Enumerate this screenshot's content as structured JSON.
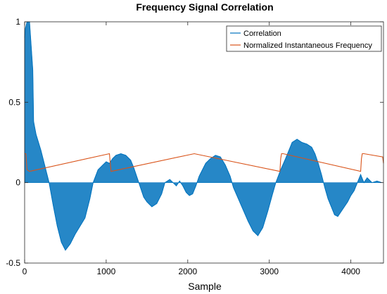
{
  "chart_data": {
    "type": "line",
    "title": "Frequency Signal Correlation",
    "xlabel": "Sample",
    "ylabel": "",
    "xlim": [
      0,
      4400
    ],
    "ylim": [
      -0.5,
      1
    ],
    "xticks": [
      0,
      1000,
      2000,
      3000,
      4000
    ],
    "xtick_labels": [
      "0",
      "1000",
      "2000",
      "3000",
      "4000"
    ],
    "yticks": [
      -0.5,
      0,
      0.5,
      1
    ],
    "ytick_labels": [
      "-0.5",
      "0",
      "0.5",
      "1"
    ],
    "grid": false,
    "legend_position": "top-right",
    "series": [
      {
        "name": "Correlation",
        "color": "#0072BD",
        "style": "filled-to-zero",
        "x": [
          0,
          10,
          30,
          60,
          80,
          100,
          110,
          140,
          200,
          260,
          300,
          350,
          400,
          450,
          500,
          560,
          620,
          680,
          740,
          800,
          840,
          900,
          960,
          1000,
          1040,
          1080,
          1120,
          1180,
          1240,
          1300,
          1340,
          1380,
          1420,
          1460,
          1500,
          1560,
          1620,
          1680,
          1720,
          1780,
          1820,
          1860,
          1900,
          1940,
          1980,
          2020,
          2060,
          2100,
          2140,
          2180,
          2220,
          2280,
          2340,
          2400,
          2460,
          2520,
          2560,
          2620,
          2680,
          2740,
          2800,
          2860,
          2920,
          2980,
          3040,
          3080,
          3140,
          3200,
          3240,
          3280,
          3340,
          3400,
          3460,
          3520,
          3560,
          3600,
          3640,
          3680,
          3720,
          3760,
          3800,
          3840,
          3880,
          3920,
          3960,
          4000,
          4040,
          4080,
          4120,
          4160,
          4200,
          4260,
          4320,
          4380
        ],
        "y": [
          0.9,
          0.96,
          1.0,
          1.0,
          0.85,
          0.7,
          0.38,
          0.3,
          0.2,
          0.08,
          0.0,
          -0.14,
          -0.27,
          -0.37,
          -0.42,
          -0.38,
          -0.32,
          -0.27,
          -0.22,
          -0.1,
          0.0,
          0.08,
          0.11,
          0.13,
          0.12,
          0.15,
          0.17,
          0.18,
          0.17,
          0.14,
          0.09,
          0.03,
          -0.03,
          -0.09,
          -0.12,
          -0.15,
          -0.13,
          -0.07,
          0.0,
          0.02,
          0.0,
          -0.02,
          0.01,
          -0.02,
          -0.06,
          -0.08,
          -0.07,
          -0.02,
          0.04,
          0.08,
          0.12,
          0.15,
          0.17,
          0.16,
          0.11,
          0.04,
          -0.03,
          -0.1,
          -0.17,
          -0.24,
          -0.3,
          -0.33,
          -0.28,
          -0.18,
          -0.07,
          0.0,
          0.08,
          0.15,
          0.2,
          0.25,
          0.27,
          0.25,
          0.24,
          0.22,
          0.18,
          0.12,
          0.05,
          -0.03,
          -0.1,
          -0.15,
          -0.2,
          -0.21,
          -0.18,
          -0.15,
          -0.12,
          -0.08,
          -0.05,
          0.0,
          0.05,
          0.0,
          0.03,
          0.0,
          0.01,
          0.0
        ]
      },
      {
        "name": "Normalized Instantaneous Frequency",
        "color": "#D95319",
        "style": "line",
        "x": [
          0,
          15,
          30,
          60,
          1040,
          1050,
          1060,
          2080,
          3130,
          3140,
          3150,
          3170,
          4120,
          4130,
          4140,
          4160,
          4390,
          4400
        ],
        "y": [
          0.18,
          0.18,
          0.08,
          0.07,
          0.18,
          0.12,
          0.07,
          0.18,
          0.07,
          0.15,
          0.18,
          0.18,
          0.07,
          0.15,
          0.18,
          0.18,
          0.16,
          0.12
        ]
      }
    ]
  }
}
